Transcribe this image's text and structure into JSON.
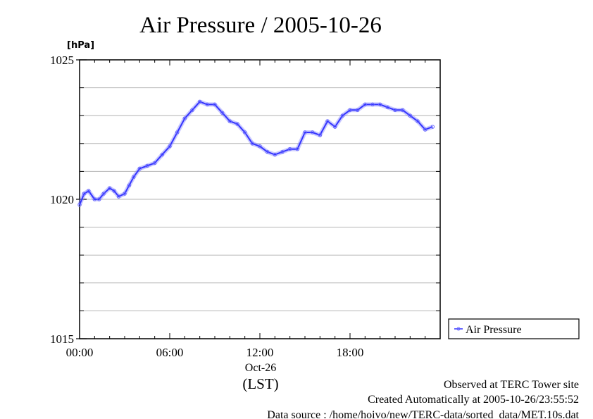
{
  "chart_data": {
    "type": "line",
    "title": "Air Pressure / 2005-10-26",
    "ylabel": "[hPa]",
    "xlabel": "(LST)",
    "x_date_label": "Oct-26",
    "ylim": [
      1015,
      1025
    ],
    "xlim_hours": [
      0,
      24
    ],
    "y_ticks": [
      "1015",
      "1020",
      "1025"
    ],
    "y_tick_values": [
      1015,
      1020,
      1025
    ],
    "x_ticks": [
      "00:00",
      "06:00",
      "12:00",
      "18:00"
    ],
    "x_tick_values": [
      0,
      6,
      12,
      18
    ],
    "grid": true,
    "legend_position": "right",
    "series": [
      {
        "name": "Air Pressure",
        "color": "#3333ff",
        "x": [
          0.0,
          0.3,
          0.6,
          1.0,
          1.3,
          1.6,
          2.0,
          2.3,
          2.6,
          3.0,
          3.3,
          3.6,
          4.0,
          4.5,
          5.0,
          5.5,
          6.0,
          6.5,
          7.0,
          7.5,
          8.0,
          8.5,
          9.0,
          9.5,
          10.0,
          10.5,
          11.0,
          11.5,
          12.0,
          12.5,
          13.0,
          13.5,
          14.0,
          14.5,
          15.0,
          15.5,
          16.0,
          16.5,
          17.0,
          17.5,
          18.0,
          18.5,
          19.0,
          19.5,
          20.0,
          20.5,
          21.0,
          21.5,
          22.0,
          22.5,
          23.0,
          23.5
        ],
        "y": [
          1019.8,
          1020.2,
          1020.3,
          1020.0,
          1020.0,
          1020.2,
          1020.4,
          1020.3,
          1020.1,
          1020.2,
          1020.5,
          1020.8,
          1021.1,
          1021.2,
          1021.3,
          1021.6,
          1021.9,
          1022.4,
          1022.9,
          1023.2,
          1023.5,
          1023.4,
          1023.4,
          1023.1,
          1022.8,
          1022.7,
          1022.4,
          1022.0,
          1021.9,
          1021.7,
          1021.6,
          1021.7,
          1021.8,
          1021.8,
          1022.4,
          1022.4,
          1022.3,
          1022.8,
          1022.6,
          1023.0,
          1023.2,
          1023.2,
          1023.4,
          1023.4,
          1023.4,
          1023.3,
          1023.2,
          1023.2,
          1023.0,
          1022.8,
          1022.5,
          1022.6
        ]
      }
    ]
  },
  "footer": {
    "line1": "Observed at TERC Tower site",
    "line2": "Created Automatically at 2005-10-26/23:55:52",
    "line3": "Data source : /home/hoivo/new/TERC-data/sorted_data/MET.10s.dat"
  }
}
